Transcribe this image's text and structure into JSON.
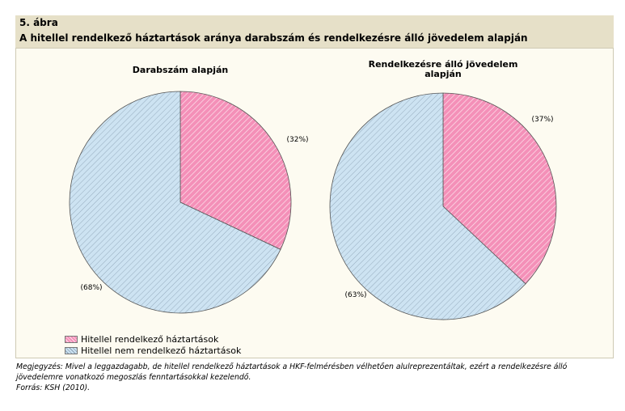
{
  "figure": {
    "number": "5. ábra",
    "title": "A hitellel rendelkező háztartások aránya darabszám és rendelkezésre álló jövedelem alapján"
  },
  "colors": {
    "with_credit": "#f490b8",
    "without_credit": "#cde3f2",
    "header_bg": "#e6e0c8",
    "panel_bg": "#fdfbf1"
  },
  "chart_data": [
    {
      "type": "pie",
      "title": "Darabszám alapján",
      "categories": [
        "Hitellel rendelkező háztartások",
        "Hitellel nem rendelkező háztartások"
      ],
      "values": [
        32,
        68
      ],
      "labels": [
        "(32%)",
        "(68%)"
      ]
    },
    {
      "type": "pie",
      "title": "Rendelkezésre álló jövedelem alapján",
      "title_lines": [
        "Rendelkezésre álló jövedelem",
        "alapján"
      ],
      "categories": [
        "Hitellel rendelkező háztartások",
        "Hitellel nem rendelkező háztartások"
      ],
      "values": [
        37,
        63
      ],
      "labels": [
        "(37%)",
        "(63%)"
      ]
    }
  ],
  "legend": {
    "items": [
      "Hitellel rendelkező háztartások",
      "Hitellel nem rendelkező háztartások"
    ]
  },
  "notes": {
    "note_line1": "Megjegyzés: Mivel a leggazdagabb, de hitellel rendelkező háztartások a HKF-felmérésben vélhetően alulreprezentáltak, ezért a rendelkezésre álló",
    "note_line2": "jövedelemre vonatkozó megoszlás fenntartásokkal kezelendő.",
    "source": "Forrás: KSH (2010)."
  }
}
